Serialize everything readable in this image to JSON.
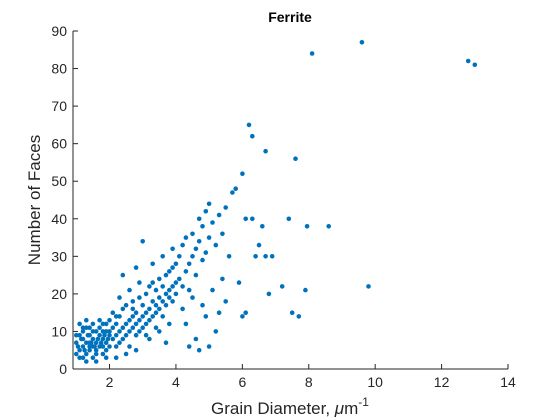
{
  "chart_data": {
    "type": "scatter",
    "title": "Ferrite",
    "xlabel_main": "Grain Diameter, ",
    "xlabel_mu": "μ",
    "xlabel_unit": "m",
    "xlabel_exp": "-1",
    "ylabel": "Number of Faces",
    "xlim": [
      0.9,
      14
    ],
    "ylim": [
      0,
      90
    ],
    "xticks": [
      "2",
      "4",
      "6",
      "8",
      "10",
      "12",
      "14"
    ],
    "yticks": [
      "0",
      "10",
      "20",
      "30",
      "40",
      "50",
      "60",
      "70",
      "80",
      "90"
    ],
    "grid": false,
    "marker_color": "#0072BD",
    "series": [
      {
        "points": [
          [
            1.0,
            4
          ],
          [
            1.0,
            7
          ],
          [
            1.1,
            5
          ],
          [
            1.1,
            9
          ],
          [
            1.1,
            3
          ],
          [
            1.2,
            6
          ],
          [
            1.2,
            8
          ],
          [
            1.2,
            10
          ],
          [
            1.3,
            4
          ],
          [
            1.3,
            7
          ],
          [
            1.3,
            11
          ],
          [
            1.4,
            5
          ],
          [
            1.4,
            9
          ],
          [
            1.4,
            6
          ],
          [
            1.5,
            8
          ],
          [
            1.5,
            3
          ],
          [
            1.5,
            12
          ],
          [
            1.6,
            7
          ],
          [
            1.6,
            10
          ],
          [
            1.6,
            5
          ],
          [
            1.7,
            9
          ],
          [
            1.7,
            6
          ],
          [
            1.7,
            11
          ],
          [
            1.8,
            8
          ],
          [
            1.8,
            4
          ],
          [
            1.8,
            12
          ],
          [
            1.9,
            7
          ],
          [
            1.9,
            10
          ],
          [
            1.9,
            5
          ],
          [
            2.0,
            9
          ],
          [
            2.0,
            13
          ],
          [
            2.0,
            6
          ],
          [
            1.05,
            6
          ],
          [
            1.15,
            8
          ],
          [
            1.25,
            5
          ],
          [
            1.35,
            9
          ],
          [
            1.45,
            7
          ],
          [
            1.55,
            6
          ],
          [
            1.65,
            8
          ],
          [
            1.75,
            7
          ],
          [
            1.85,
            9
          ],
          [
            1.95,
            8
          ],
          [
            1.1,
            12
          ],
          [
            1.3,
            13
          ],
          [
            1.5,
            10
          ],
          [
            1.7,
            13
          ],
          [
            1.9,
            12
          ],
          [
            1.0,
            9
          ],
          [
            1.2,
            3
          ],
          [
            1.4,
            11
          ],
          [
            1.6,
            4
          ],
          [
            1.8,
            6
          ],
          [
            2.0,
            10
          ],
          [
            1.3,
            2
          ],
          [
            1.6,
            2
          ],
          [
            1.9,
            3
          ],
          [
            1.2,
            11
          ],
          [
            1.5,
            6
          ],
          [
            1.8,
            10
          ],
          [
            1.4,
            7
          ],
          [
            2.1,
            11
          ],
          [
            2.1,
            8
          ],
          [
            2.1,
            15
          ],
          [
            2.2,
            9
          ],
          [
            2.2,
            12
          ],
          [
            2.2,
            6
          ],
          [
            2.3,
            10
          ],
          [
            2.3,
            14
          ],
          [
            2.3,
            7
          ],
          [
            2.4,
            11
          ],
          [
            2.4,
            16
          ],
          [
            2.4,
            8
          ],
          [
            2.5,
            12
          ],
          [
            2.5,
            9
          ],
          [
            2.5,
            17
          ],
          [
            2.6,
            13
          ],
          [
            2.6,
            10
          ],
          [
            2.6,
            6
          ],
          [
            2.7,
            14
          ],
          [
            2.7,
            11
          ],
          [
            2.7,
            18
          ],
          [
            2.8,
            12
          ],
          [
            2.8,
            15
          ],
          [
            2.8,
            9
          ],
          [
            2.9,
            13
          ],
          [
            2.9,
            19
          ],
          [
            2.9,
            10
          ],
          [
            3.0,
            14
          ],
          [
            3.0,
            17
          ],
          [
            3.0,
            11
          ],
          [
            2.2,
            3
          ],
          [
            2.5,
            4
          ],
          [
            2.8,
            5
          ],
          [
            2.3,
            19
          ],
          [
            2.6,
            21
          ],
          [
            2.9,
            23
          ],
          [
            2.4,
            25
          ],
          [
            2.8,
            27
          ],
          [
            2.2,
            14
          ],
          [
            2.7,
            16
          ],
          [
            3.1,
            15
          ],
          [
            3.1,
            20
          ],
          [
            3.1,
            12
          ],
          [
            3.2,
            16
          ],
          [
            3.2,
            22
          ],
          [
            3.2,
            13
          ],
          [
            3.3,
            18
          ],
          [
            3.3,
            14
          ],
          [
            3.3,
            23
          ],
          [
            3.4,
            17
          ],
          [
            3.4,
            21
          ],
          [
            3.4,
            15
          ],
          [
            3.5,
            19
          ],
          [
            3.5,
            24
          ],
          [
            3.5,
            16
          ],
          [
            3.6,
            18
          ],
          [
            3.6,
            22
          ],
          [
            3.6,
            14
          ],
          [
            3.7,
            20
          ],
          [
            3.7,
            25
          ],
          [
            3.7,
            17
          ],
          [
            3.8,
            21
          ],
          [
            3.8,
            19
          ],
          [
            3.8,
            26
          ],
          [
            3.9,
            22
          ],
          [
            3.9,
            18
          ],
          [
            3.9,
            27
          ],
          [
            4.0,
            23
          ],
          [
            4.0,
            20
          ],
          [
            4.0,
            28
          ],
          [
            3.0,
            34
          ],
          [
            3.2,
            8
          ],
          [
            3.5,
            10
          ],
          [
            3.8,
            12
          ],
          [
            3.3,
            28
          ],
          [
            3.6,
            30
          ],
          [
            3.9,
            32
          ],
          [
            3.1,
            9
          ],
          [
            3.4,
            11
          ],
          [
            3.7,
            7
          ],
          [
            4.1,
            24
          ],
          [
            4.1,
            30
          ],
          [
            4.2,
            22
          ],
          [
            4.2,
            33
          ],
          [
            4.3,
            26
          ],
          [
            4.3,
            35
          ],
          [
            4.4,
            28
          ],
          [
            4.4,
            21
          ],
          [
            4.5,
            30
          ],
          [
            4.5,
            36
          ],
          [
            4.6,
            32
          ],
          [
            4.6,
            25
          ],
          [
            4.7,
            34
          ],
          [
            4.7,
            40
          ],
          [
            4.8,
            29
          ],
          [
            4.8,
            38
          ],
          [
            4.9,
            42
          ],
          [
            4.9,
            31
          ],
          [
            5.0,
            35
          ],
          [
            5.0,
            44
          ],
          [
            5.1,
            39
          ],
          [
            5.2,
            33
          ],
          [
            5.3,
            41
          ],
          [
            5.4,
            36
          ],
          [
            5.5,
            43
          ],
          [
            4.3,
            12
          ],
          [
            4.6,
            8
          ],
          [
            4.9,
            14
          ],
          [
            5.2,
            10
          ],
          [
            5.5,
            18
          ],
          [
            4.2,
            16
          ],
          [
            4.5,
            19
          ],
          [
            4.8,
            17
          ],
          [
            5.1,
            21
          ],
          [
            5.4,
            24
          ],
          [
            4.4,
            6
          ],
          [
            4.7,
            5
          ],
          [
            5.0,
            6
          ],
          [
            5.3,
            15
          ],
          [
            5.6,
            30
          ],
          [
            5.8,
            48
          ],
          [
            6.0,
            52
          ],
          [
            6.1,
            40
          ],
          [
            6.2,
            65
          ],
          [
            6.3,
            62
          ],
          [
            6.5,
            33
          ],
          [
            6.7,
            58
          ],
          [
            6.9,
            30
          ],
          [
            5.9,
            23
          ],
          [
            6.0,
            14
          ],
          [
            6.1,
            15
          ],
          [
            6.4,
            30
          ],
          [
            6.6,
            38
          ],
          [
            6.7,
            30
          ],
          [
            6.8,
            20
          ],
          [
            7.2,
            22
          ],
          [
            7.4,
            40
          ],
          [
            7.5,
            15
          ],
          [
            7.6,
            56
          ],
          [
            7.7,
            14
          ],
          [
            7.9,
            21
          ],
          [
            7.95,
            38
          ],
          [
            8.1,
            84
          ],
          [
            8.6,
            38
          ],
          [
            9.6,
            87
          ],
          [
            9.8,
            22
          ],
          [
            12.8,
            82
          ],
          [
            13.0,
            81
          ],
          [
            6.3,
            40
          ],
          [
            5.7,
            47
          ]
        ]
      }
    ]
  }
}
